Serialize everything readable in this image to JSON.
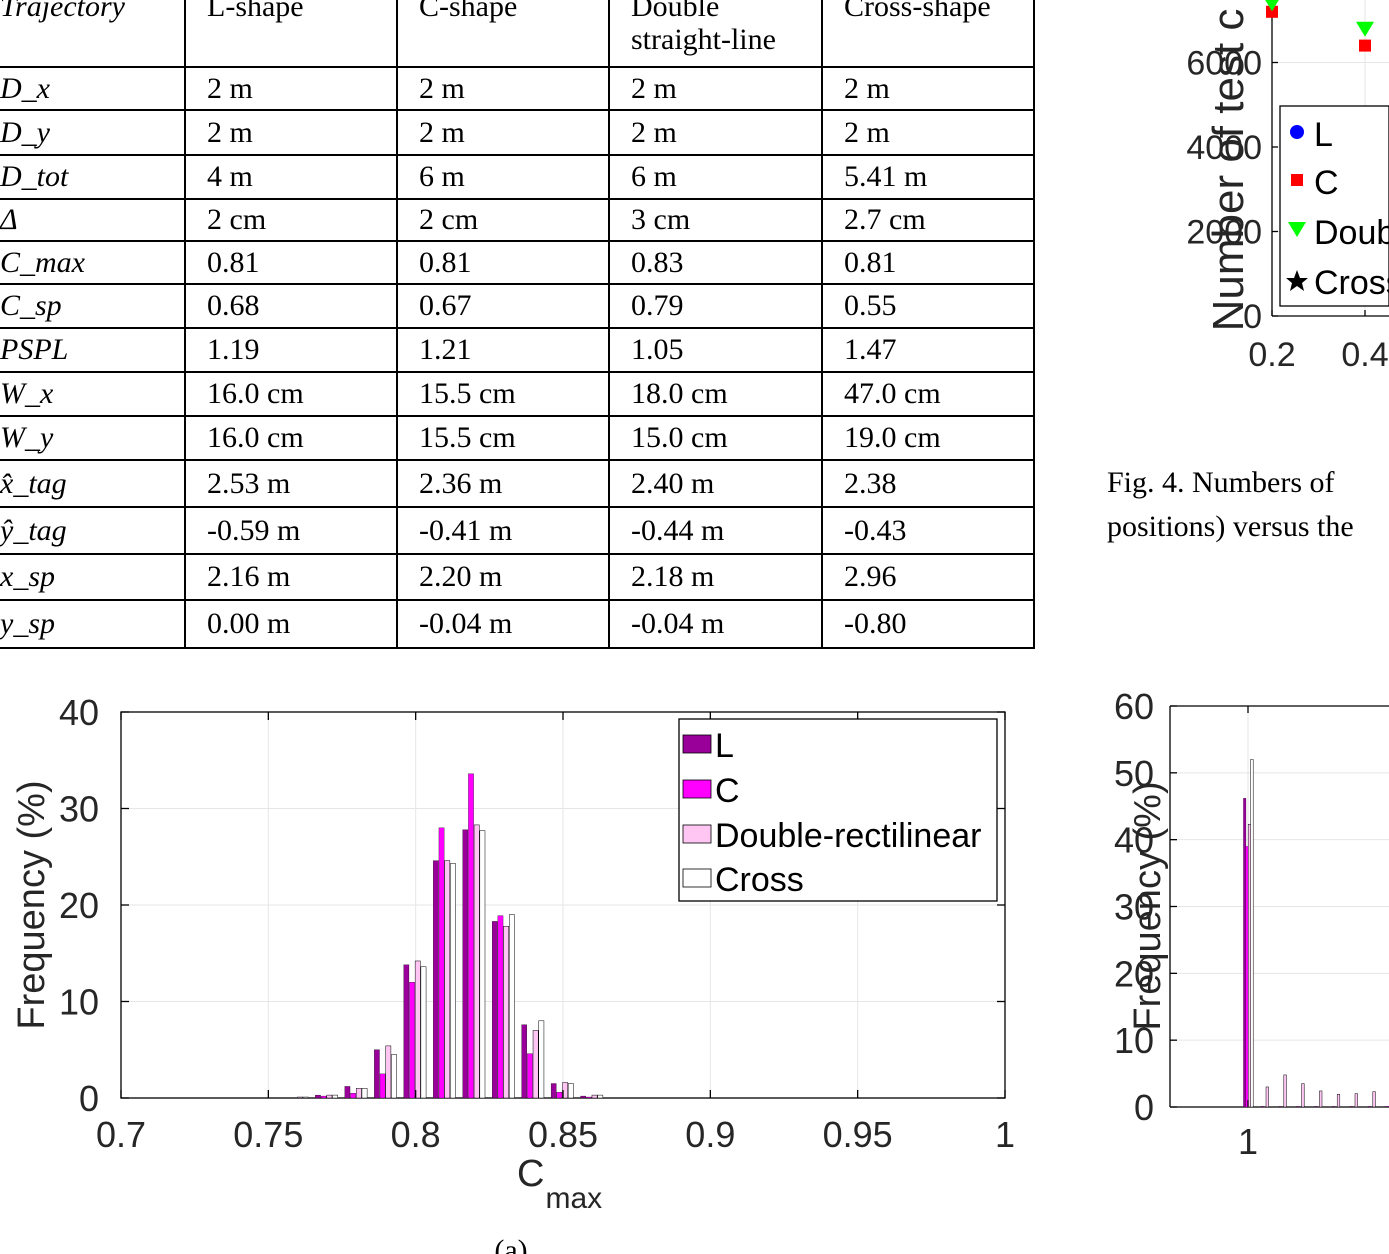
{
  "table": {
    "header": [
      "Trajectory",
      "L-shape",
      "C-shape",
      "Double straight-line",
      "Cross-shape"
    ],
    "rows": [
      {
        "label": "D_x",
        "values": [
          "2 m",
          "2 m",
          "2 m",
          "2 m"
        ]
      },
      {
        "label": "D_y",
        "values": [
          "2 m",
          "2 m",
          "2 m",
          "2 m"
        ]
      },
      {
        "label": "D_tot",
        "values": [
          "4 m",
          "6 m",
          "6 m",
          "5.41 m"
        ]
      },
      {
        "label": "Δ",
        "values": [
          "2 cm",
          "2 cm",
          "3 cm",
          "2.7 cm"
        ]
      },
      {
        "label": "C_max",
        "values": [
          "0.81",
          "0.81",
          "0.83",
          "0.81"
        ]
      },
      {
        "label": "C_sp",
        "values": [
          "0.68",
          "0.67",
          "0.79",
          "0.55"
        ]
      },
      {
        "label": "PSPL",
        "values": [
          "1.19",
          "1.21",
          "1.05",
          "1.47"
        ]
      },
      {
        "label": "W_x",
        "values": [
          "16.0 cm",
          "15.5 cm",
          "18.0 cm",
          "47.0 cm"
        ]
      },
      {
        "label": "W_y",
        "values": [
          "16.0 cm",
          "15.5 cm",
          "15.0 cm",
          "19.0 cm"
        ]
      },
      {
        "label": "x̂_tag",
        "values": [
          "2.53 m",
          "2.36 m",
          "2.40 m",
          "2.38"
        ]
      },
      {
        "label": "ŷ_tag",
        "values": [
          "-0.59 m",
          "-0.41 m",
          "-0.44 m",
          "-0.43"
        ]
      },
      {
        "label": "x_sp",
        "values": [
          "2.16 m",
          "2.20 m",
          "2.18 m",
          "2.96"
        ]
      },
      {
        "label": "y_sp",
        "values": [
          "0.00 m",
          "-0.04 m",
          "-0.04 m",
          "-0.80"
        ]
      }
    ]
  },
  "caption": {
    "line1": "Fig. 4.  Numbers of",
    "line2": "positions) versus the"
  },
  "subfig_label": "(a)",
  "colors": {
    "L": "#990099",
    "C": "#ff00ff",
    "Double": "#ffc6f4",
    "Cross": "#ffffff",
    "grid": "#e6e6e6"
  },
  "chart_data": [
    {
      "type": "scatter",
      "ylabel": "Number of test c",
      "x_ticks": [
        "0.2",
        "0.4"
      ],
      "y_ticks": [
        "0",
        "2000",
        "4000",
        "6000"
      ],
      "legend": [
        "L",
        "C",
        "Doub",
        "Cross"
      ],
      "series": [
        {
          "name": "L",
          "x": [],
          "y": []
        },
        {
          "name": "C",
          "x": [
            0.2,
            0.4
          ],
          "y": [
            7200,
            6400
          ]
        },
        {
          "name": "Doub",
          "x": [
            0.2,
            0.4
          ],
          "y": [
            7400,
            6800
          ]
        },
        {
          "name": "Cross",
          "x": [],
          "y": []
        }
      ]
    },
    {
      "type": "bar",
      "xlabel_main": "C",
      "xlabel_sub": "max",
      "ylabel": "Frequency (%)",
      "xlim": [
        0.7,
        1
      ],
      "ylim": [
        0,
        40
      ],
      "x_ticks": [
        "0.7",
        "0.75",
        "0.8",
        "0.85",
        "0.9",
        "0.95",
        "1"
      ],
      "y_ticks": [
        "0",
        "10",
        "20",
        "30",
        "40"
      ],
      "legend": [
        "L",
        "C",
        "Double-rectilinear",
        "Cross"
      ],
      "categories": [
        0.76,
        0.77,
        0.78,
        0.79,
        0.8,
        0.81,
        0.82,
        0.83,
        0.84,
        0.85,
        0.86
      ],
      "series": [
        {
          "name": "L",
          "values": [
            0,
            0.3,
            1.2,
            5.0,
            13.8,
            24.6,
            27.8,
            18.3,
            7.6,
            1.5,
            0.2
          ]
        },
        {
          "name": "C",
          "values": [
            0,
            0.2,
            0.5,
            2.5,
            12.0,
            28.0,
            33.6,
            18.9,
            4.6,
            0.6,
            0.1
          ]
        },
        {
          "name": "Double-rectilinear",
          "values": [
            0.1,
            0.3,
            1.0,
            5.4,
            14.2,
            24.6,
            28.3,
            17.8,
            7.0,
            1.6,
            0.3
          ]
        },
        {
          "name": "Cross",
          "values": [
            0.1,
            0.3,
            1.0,
            4.5,
            13.6,
            24.3,
            27.7,
            19.0,
            8.0,
            1.5,
            0.3
          ]
        }
      ]
    },
    {
      "type": "bar",
      "ylabel": "Frequency (%)",
      "ylim": [
        0,
        60
      ],
      "x_ticks": [
        "1"
      ],
      "y_ticks": [
        "0",
        "10",
        "20",
        "30",
        "40",
        "50",
        "60"
      ],
      "categories": [
        1.0,
        1.02,
        1.04,
        1.06,
        1.08,
        1.1,
        1.12,
        1.14,
        1.16
      ],
      "series": [
        {
          "name": "L",
          "values": [
            46.2,
            0.1,
            0.1,
            0.1,
            0.1,
            0.1,
            0.1,
            0.1,
            0.1
          ]
        },
        {
          "name": "C",
          "values": [
            39.0,
            0,
            0,
            0,
            0,
            0,
            0,
            0,
            0.1
          ]
        },
        {
          "name": "Double-rectilinear",
          "values": [
            42.3,
            3.0,
            4.8,
            3.5,
            2.4,
            1.9,
            2.0,
            2.3,
            2.0
          ]
        },
        {
          "name": "Cross",
          "values": [
            52.0,
            0,
            0,
            0,
            0,
            0,
            0,
            0,
            0
          ]
        }
      ]
    }
  ]
}
